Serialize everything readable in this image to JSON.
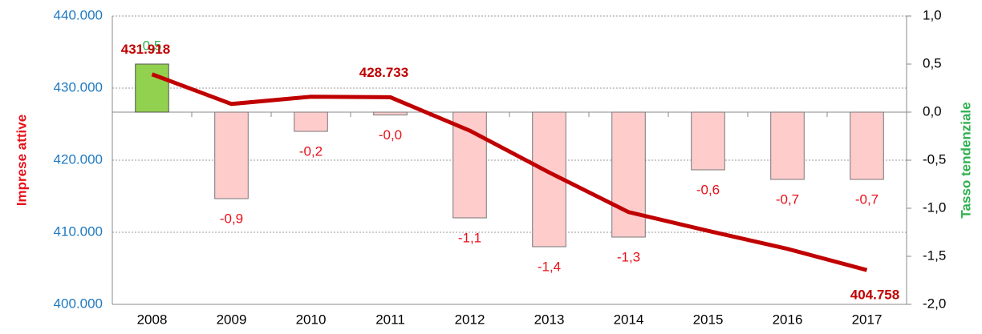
{
  "chart_data": {
    "type": "combo",
    "categories": [
      "2008",
      "2009",
      "2010",
      "2011",
      "2012",
      "2013",
      "2014",
      "2015",
      "2016",
      "2017"
    ],
    "ylabel": "Imprese attive",
    "y2label": "Tasso tendenziale",
    "ylim": [
      400000,
      440000
    ],
    "yticks": [
      {
        "value": 400000,
        "label": "400.000"
      },
      {
        "value": 410000,
        "label": "410.000"
      },
      {
        "value": 420000,
        "label": "420.000"
      },
      {
        "value": 430000,
        "label": "430.000"
      },
      {
        "value": 440000,
        "label": "440.000"
      }
    ],
    "y2lim": [
      -2,
      1
    ],
    "y2ticks": [
      {
        "value": -2,
        "label": "-2,0"
      },
      {
        "value": -1.5,
        "label": "-1,5"
      },
      {
        "value": -1,
        "label": "-1,0"
      },
      {
        "value": -0.5,
        "label": "-0,5"
      },
      {
        "value": 0,
        "label": "0,0"
      },
      {
        "value": 0.5,
        "label": "0,5"
      },
      {
        "value": 1,
        "label": "1,0"
      }
    ],
    "grid": true,
    "series": [
      {
        "name": "Tasso tendenziale",
        "type": "bar",
        "axis": "y2",
        "positive_color": "#92d050",
        "negative_color": "#ffcccc",
        "values": [
          0.5,
          -0.9,
          -0.2,
          -0.03,
          -1.1,
          -1.4,
          -1.3,
          -0.6,
          -0.7,
          -0.7
        ],
        "value_labels": [
          "0,5",
          "-0,9",
          "-0,2",
          "-0,0",
          "-1,1",
          "-1,4",
          "-1,3",
          "-0,6",
          "-0,7",
          "-0,7"
        ]
      },
      {
        "name": "Imprese attive",
        "type": "line",
        "color": "#c00000",
        "values": [
          431918,
          427800,
          428800,
          428733,
          424100,
          418300,
          412800,
          410200,
          407700,
          404758
        ],
        "value_labels": [
          "431.918",
          null,
          null,
          "428.733",
          null,
          null,
          null,
          null,
          null,
          "404.758"
        ]
      }
    ]
  }
}
